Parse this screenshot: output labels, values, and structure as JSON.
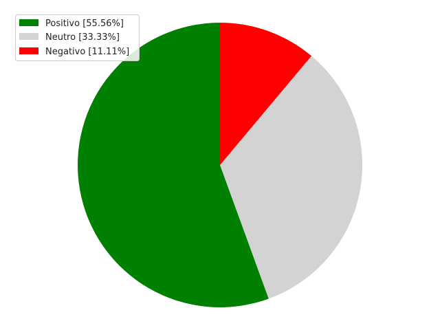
{
  "chart_data": {
    "type": "pie",
    "title": "",
    "categories": [
      "Positivo",
      "Neutro",
      "Negativo"
    ],
    "values": [
      55.56,
      33.33,
      11.11
    ],
    "colors": [
      "#008000",
      "#d3d3d3",
      "#ff0000"
    ],
    "start_angle_deg": 90,
    "direction": "counterclockwise",
    "legend": {
      "placement": "top-left",
      "entries": [
        "Positivo [55.56%]",
        "Neutro [33.33%]",
        "Negativo [11.11%]"
      ]
    }
  }
}
